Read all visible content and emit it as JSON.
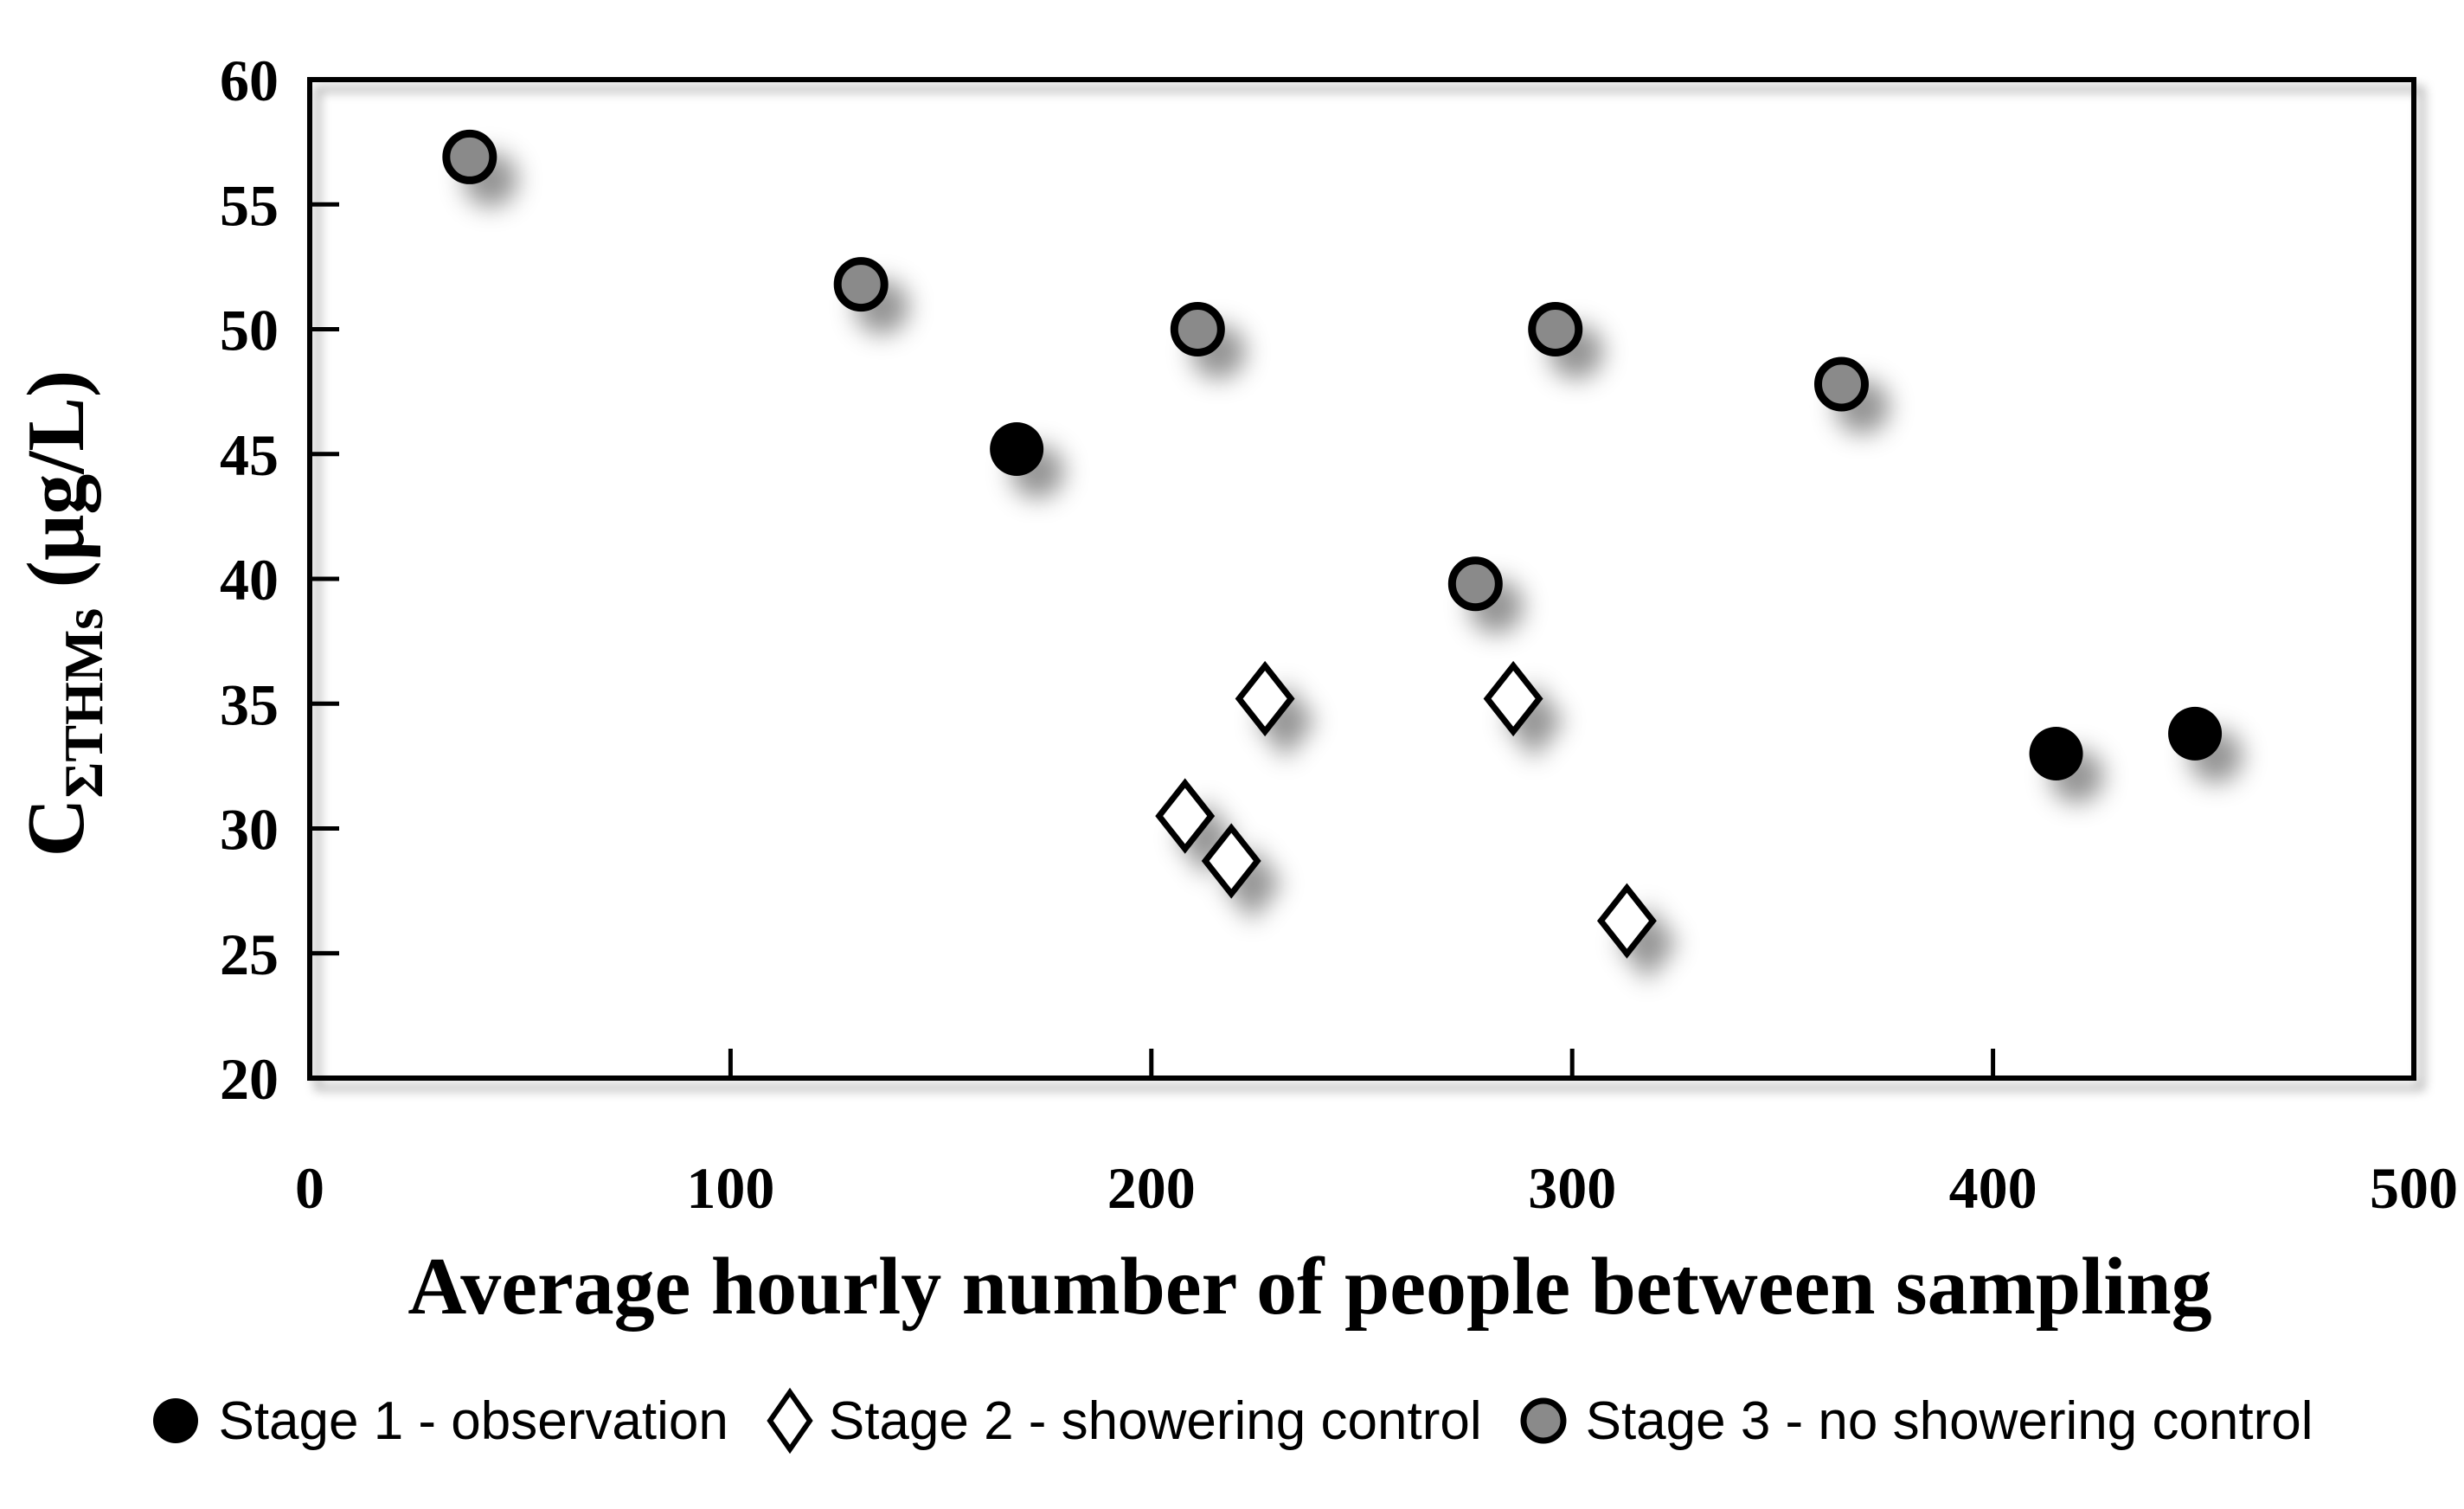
{
  "chart_data": {
    "type": "scatter",
    "title": "",
    "xlabel": "Average hourly number of people between sampling",
    "ylabel": {
      "base": "C",
      "subscript": "ΣTHMs",
      "unit": " (μg/L)"
    },
    "xlim": [
      0,
      500
    ],
    "ylim": [
      20,
      60
    ],
    "xticks": [
      0,
      100,
      200,
      300,
      400,
      500
    ],
    "yticks": [
      20,
      25,
      30,
      35,
      40,
      45,
      50,
      55,
      60
    ],
    "grid": false,
    "legend_position": "bottom",
    "series": [
      {
        "name": "Stage 1 - observation",
        "marker": "circle",
        "fill": "#000000",
        "stroke": "#000000",
        "points": [
          [
            168,
            45.2
          ],
          [
            415,
            33.0
          ],
          [
            448,
            33.8
          ]
        ]
      },
      {
        "name": "Stage 2 - showering control",
        "marker": "diamond",
        "fill": "#ffffff",
        "stroke": "#000000",
        "points": [
          [
            227,
            35.2
          ],
          [
            286,
            35.2
          ],
          [
            208,
            30.5
          ],
          [
            219,
            28.7
          ],
          [
            313,
            26.3
          ]
        ]
      },
      {
        "name": "Stage 3 - no showering control",
        "marker": "circle",
        "fill": "#8a8a8a",
        "stroke": "#000000",
        "points": [
          [
            38,
            56.9
          ],
          [
            131,
            51.8
          ],
          [
            211,
            50.0
          ],
          [
            296,
            50.0
          ],
          [
            364,
            47.8
          ],
          [
            277,
            39.8
          ]
        ]
      }
    ],
    "colors": {
      "axis": "#000000",
      "text": "#000000",
      "background": "#ffffff",
      "stage3_fill": "#8a8a8a",
      "stage2_fill": "#ffffff",
      "stage1_fill": "#000000"
    }
  }
}
